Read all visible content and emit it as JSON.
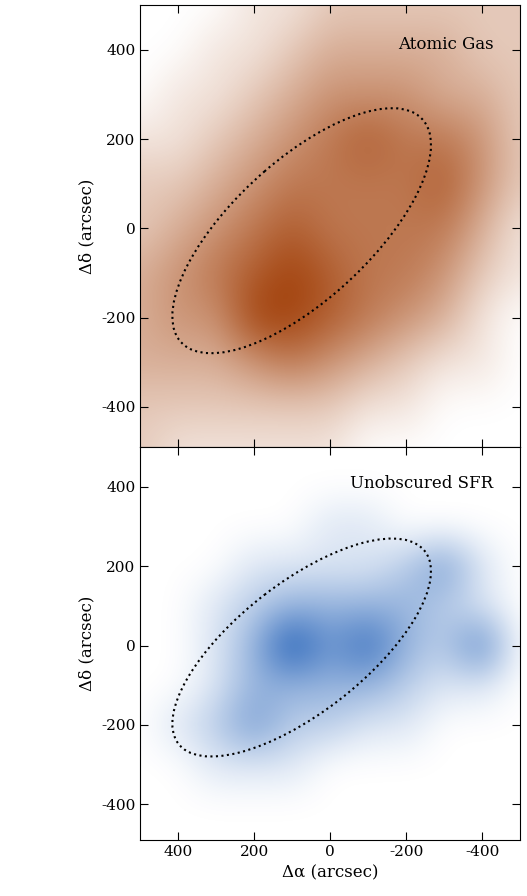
{
  "chart_data": [
    {
      "type": "heatmap",
      "title": "Atomic Gas",
      "ylabel": "Δδ (arcsec)",
      "color": "#a3420c",
      "tick_labels": "y",
      "x": [
        500,
        400,
        300,
        200,
        100,
        0,
        -100,
        -200,
        -300,
        -400,
        -500
      ],
      "y": [
        500,
        400,
        300,
        200,
        100,
        0,
        -100,
        -200,
        -300,
        -400,
        -500
      ],
      "cells": [
        [
          1,
          1,
          1,
          2,
          2,
          3,
          3,
          3,
          3,
          3,
          3
        ],
        [
          1,
          1,
          2,
          2,
          3,
          4,
          4,
          4,
          4,
          3,
          3
        ],
        [
          1,
          2,
          2,
          3,
          4,
          5,
          5,
          5,
          4,
          4,
          3
        ],
        [
          2,
          2,
          3,
          4,
          5,
          6,
          7,
          6,
          6,
          5,
          3
        ],
        [
          3,
          3,
          4,
          5,
          6,
          6,
          6,
          6,
          7,
          5,
          3
        ],
        [
          3,
          4,
          5,
          6,
          7,
          6,
          6,
          6,
          6,
          4,
          2
        ],
        [
          4,
          5,
          6,
          7,
          8,
          7,
          6,
          6,
          5,
          3,
          2
        ],
        [
          4,
          5,
          5,
          8,
          8,
          7,
          6,
          5,
          4,
          2,
          1
        ],
        [
          4,
          4,
          4,
          5,
          6,
          5,
          4,
          3,
          2,
          2,
          1
        ],
        [
          3,
          3,
          3,
          3,
          3,
          3,
          2,
          2,
          1,
          1,
          1
        ],
        [
          3,
          2,
          2,
          2,
          2,
          2,
          1,
          1,
          1,
          1,
          1
        ]
      ],
      "xlim": [
        500,
        -500
      ],
      "ylim": [
        -490,
        500
      ],
      "xticks": [
        400,
        200,
        0,
        -200,
        -400
      ],
      "yticks": [
        -400,
        -200,
        0,
        200,
        400
      ],
      "ellipse": {
        "center": [
          75,
          -5
        ],
        "width": 810,
        "height": 330,
        "angle": 143.6
      }
    },
    {
      "type": "heatmap",
      "title": "Unobscured SFR",
      "ylabel": "Δδ (arcsec)",
      "xlabel": "Δα (arcsec)",
      "color": "#0a4fb0",
      "x": [
        500,
        400,
        300,
        200,
        100,
        0,
        -100,
        -200,
        -300,
        -400,
        -500
      ],
      "y": [
        500,
        400,
        300,
        200,
        100,
        0,
        -100,
        -200,
        -300,
        -400,
        -500
      ],
      "cells": [
        [
          0,
          0,
          0,
          0,
          0,
          0,
          0,
          0,
          0,
          0,
          0
        ],
        [
          0,
          0,
          0,
          0,
          0,
          0,
          0,
          0,
          0,
          0,
          0
        ],
        [
          0,
          0,
          0,
          0,
          0,
          1,
          1,
          0,
          0,
          0,
          0
        ],
        [
          0,
          0,
          0,
          1,
          1,
          1,
          1,
          2,
          4,
          1,
          0
        ],
        [
          0,
          0,
          1,
          2,
          3,
          3,
          3,
          3,
          2,
          1,
          0
        ],
        [
          0,
          0,
          1,
          3,
          7,
          4,
          6,
          3,
          2,
          5,
          0
        ],
        [
          0,
          0,
          1,
          3,
          3,
          3,
          3,
          2,
          1,
          1,
          0
        ],
        [
          0,
          1,
          2,
          4,
          2,
          2,
          1,
          1,
          0,
          0,
          0
        ],
        [
          0,
          0,
          1,
          1,
          1,
          0,
          0,
          0,
          0,
          0,
          0
        ],
        [
          0,
          0,
          0,
          0,
          0,
          0,
          0,
          0,
          0,
          0,
          0
        ],
        [
          0,
          0,
          0,
          0,
          0,
          0,
          0,
          0,
          0,
          0,
          0
        ]
      ],
      "xlim": [
        500,
        -500
      ],
      "ylim": [
        -490,
        500
      ],
      "xticks": [
        400,
        200,
        0,
        -200,
        -400
      ],
      "yticks": [
        -400,
        -200,
        0,
        200,
        400
      ],
      "ellipse": {
        "center": [
          75,
          -5
        ],
        "width": 810,
        "height": 330,
        "angle": 143.6
      }
    }
  ]
}
